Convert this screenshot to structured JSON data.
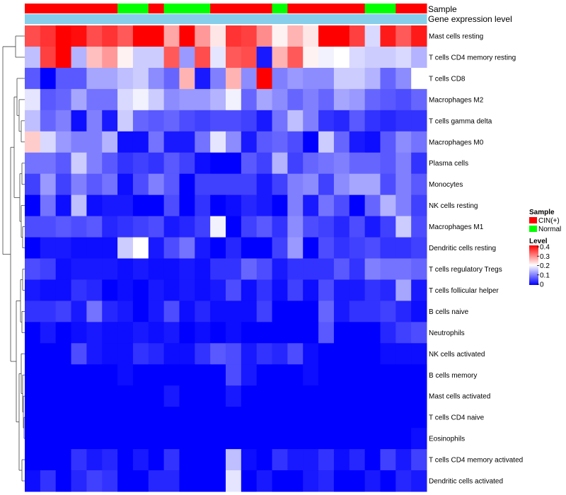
{
  "chart_data": {
    "type": "heatmap",
    "title": "",
    "row_labels": [
      "Mast cells resting",
      "T cells CD4 memory resting",
      "T cells CD8",
      "Macrophages M2",
      "T cells gamma delta",
      "Macrophages M0",
      "Plasma cells",
      "Monocytes",
      "NK cells resting",
      "Macrophages M1",
      "Dendritic cells resting",
      "T cells regulatory  Tregs",
      "T cells follicular helper",
      "B cells naive",
      "Neutrophils",
      "NK cells activated",
      "B cells memory",
      "Mast cells activated",
      "T cells CD4 naive",
      "Eosinophils",
      "T cells CD4 memory activated",
      "Dendritic cells activated"
    ],
    "column_annotation": {
      "Sample": [
        "CIN(+)",
        "CIN(+)",
        "CIN(+)",
        "CIN(+)",
        "CIN(+)",
        "CIN(+)",
        "Normal",
        "Normal",
        "CIN(+)",
        "Normal",
        "Normal",
        "Normal",
        "CIN(+)",
        "CIN(+)",
        "CIN(+)",
        "CIN(+)",
        "Normal",
        "CIN(+)",
        "CIN(+)",
        "CIN(+)",
        "CIN(+)",
        "CIN(+)",
        "Normal",
        "Normal",
        "CIN(+)",
        "CIN(+)"
      ],
      "Gene expression level": [
        "Gene expression level",
        "Gene expression level",
        "Gene expression level",
        "Gene expression level",
        "Gene expression level",
        "Gene expression level",
        "Gene expression level",
        "Gene expression level",
        "Gene expression level",
        "Gene expression level",
        "Gene expression level",
        "Gene expression level",
        "Gene expression level",
        "Gene expression level",
        "Gene expression level",
        "Gene expression level",
        "Gene expression level",
        "Gene expression level",
        "Gene expression level",
        "Gene expression level",
        "Gene expression level",
        "Gene expression level",
        "Gene expression level",
        "Gene expression level",
        "Gene expression level",
        "Gene expression level"
      ]
    },
    "annotation_labels": [
      "Sample",
      "Gene expression level"
    ],
    "values": [
      [
        0.34,
        0.36,
        0.4,
        0.39,
        0.34,
        0.36,
        0.33,
        0.4,
        0.4,
        0.27,
        0.4,
        0.28,
        0.22,
        0.36,
        0.35,
        0.29,
        0.21,
        0.26,
        0.22,
        0.4,
        0.4,
        0.35,
        0.17,
        0.38,
        0.33,
        0.38
      ],
      [
        0.15,
        0.35,
        0.4,
        0.14,
        0.25,
        0.28,
        0.21,
        0.16,
        0.16,
        0.33,
        0.12,
        0.34,
        0.18,
        0.33,
        0.34,
        0.02,
        0.26,
        0.33,
        0.21,
        0.19,
        0.2,
        0.17,
        0.16,
        0.16,
        0.17,
        0.14
      ],
      [
        0.07,
        0.0,
        0.07,
        0.07,
        0.13,
        0.13,
        0.15,
        0.16,
        0.11,
        0.08,
        0.26,
        0.02,
        0.1,
        0.26,
        0.11,
        0.4,
        0.1,
        0.12,
        0.11,
        0.11,
        0.16,
        0.16,
        0.14,
        0.08,
        0.11,
        0.2
      ],
      [
        0.18,
        0.07,
        0.08,
        0.13,
        0.09,
        0.09,
        0.17,
        0.19,
        0.16,
        0.11,
        0.12,
        0.12,
        0.14,
        0.19,
        0.08,
        0.13,
        0.11,
        0.08,
        0.1,
        0.08,
        0.13,
        0.12,
        0.08,
        0.07,
        0.06,
        0.08
      ],
      [
        0.15,
        0.08,
        0.1,
        0.01,
        0.1,
        0.02,
        0.16,
        0.08,
        0.07,
        0.08,
        0.06,
        0.05,
        0.06,
        0.06,
        0.05,
        0.02,
        0.09,
        0.15,
        0.1,
        0.04,
        0.03,
        0.07,
        0.04,
        0.03,
        0.04,
        0.04
      ],
      [
        0.24,
        0.17,
        0.12,
        0.1,
        0.1,
        0.14,
        0.01,
        0.01,
        0.09,
        0.02,
        0.02,
        0.09,
        0.18,
        0.11,
        0.02,
        0.07,
        0.08,
        0.06,
        0.0,
        0.16,
        0.08,
        0.02,
        0.01,
        0.07,
        0.11,
        0.09
      ],
      [
        0.09,
        0.09,
        0.07,
        0.16,
        0.1,
        0.07,
        0.04,
        0.05,
        0.04,
        0.07,
        0.05,
        0.01,
        0.0,
        0.0,
        0.07,
        0.05,
        0.14,
        0.05,
        0.08,
        0.09,
        0.1,
        0.08,
        0.08,
        0.07,
        0.1,
        0.04
      ],
      [
        0.05,
        0.12,
        0.05,
        0.1,
        0.07,
        0.09,
        0.01,
        0.06,
        0.1,
        0.07,
        0.0,
        0.05,
        0.05,
        0.05,
        0.05,
        0.02,
        0.05,
        0.1,
        0.11,
        0.05,
        0.11,
        0.13,
        0.13,
        0.06,
        0.1,
        0.07
      ],
      [
        0.0,
        0.09,
        0.01,
        0.15,
        0.01,
        0.02,
        0.02,
        0.0,
        0.0,
        0.06,
        0.0,
        0.04,
        0.0,
        0.01,
        0.03,
        0.02,
        0.0,
        0.1,
        0.02,
        0.09,
        0.06,
        0.0,
        0.08,
        0.14,
        0.1,
        0.05
      ],
      [
        0.06,
        0.06,
        0.07,
        0.06,
        0.07,
        0.03,
        0.04,
        0.05,
        0.06,
        0.02,
        0.03,
        0.05,
        0.19,
        0.0,
        0.05,
        0.07,
        0.04,
        0.11,
        0.06,
        0.05,
        0.03,
        0.06,
        0.02,
        0.05,
        0.16,
        0.06
      ],
      [
        0.0,
        0.02,
        0.02,
        0.01,
        0.01,
        0.01,
        0.16,
        0.2,
        0.02,
        0.06,
        0.09,
        0.02,
        0.0,
        0.03,
        0.0,
        0.0,
        0.05,
        0.12,
        0.0,
        0.06,
        0.04,
        0.05,
        0.06,
        0.04,
        0.04,
        0.05
      ],
      [
        0.06,
        0.05,
        0.01,
        0.02,
        0.02,
        0.02,
        0.01,
        0.02,
        0.01,
        0.01,
        0.02,
        0.01,
        0.04,
        0.04,
        0.08,
        0.06,
        0.02,
        0.04,
        0.04,
        0.04,
        0.07,
        0.04,
        0.1,
        0.09,
        0.09,
        0.08
      ],
      [
        0.02,
        0.01,
        0.01,
        0.04,
        0.03,
        0.0,
        0.01,
        0.0,
        0.02,
        0.01,
        0.02,
        0.01,
        0.02,
        0.06,
        0.01,
        0.04,
        0.01,
        0.05,
        0.01,
        0.06,
        0.02,
        0.02,
        0.04,
        0.03,
        0.13,
        0.02
      ],
      [
        0.04,
        0.04,
        0.05,
        0.02,
        0.09,
        0.03,
        0.02,
        0.0,
        0.02,
        0.06,
        0.01,
        0.03,
        0.01,
        0.01,
        0.01,
        0.05,
        0.0,
        0.0,
        0.0,
        0.08,
        0.02,
        0.04,
        0.04,
        0.05,
        0.03,
        0.01
      ],
      [
        0.0,
        0.02,
        0.0,
        0.01,
        0.02,
        0.01,
        0.01,
        0.02,
        0.01,
        0.02,
        0.0,
        0.01,
        0.0,
        0.01,
        0.0,
        0.0,
        0.0,
        0.0,
        0.0,
        0.07,
        0.0,
        0.0,
        0.0,
        0.03,
        0.05,
        0.06
      ],
      [
        0.0,
        0.0,
        0.0,
        0.06,
        0.02,
        0.01,
        0.01,
        0.04,
        0.03,
        0.01,
        0.01,
        0.04,
        0.07,
        0.06,
        0.02,
        0.04,
        0.03,
        0.06,
        0.01,
        0.0,
        0.0,
        0.0,
        0.0,
        0.01,
        0.01,
        0.01
      ],
      [
        0.0,
        0.0,
        0.0,
        0.0,
        0.0,
        0.0,
        0.01,
        0.0,
        0.0,
        0.0,
        0.0,
        0.0,
        0.0,
        0.06,
        0.02,
        0.0,
        0.0,
        0.0,
        0.01,
        0.0,
        0.0,
        0.0,
        0.0,
        0.0,
        0.0,
        0.0
      ],
      [
        0.0,
        0.0,
        0.0,
        0.0,
        0.0,
        0.0,
        0.0,
        0.0,
        0.0,
        0.02,
        0.0,
        0.0,
        0.0,
        0.02,
        0.0,
        0.0,
        0.0,
        0.0,
        0.0,
        0.0,
        0.0,
        0.0,
        0.0,
        0.0,
        0.0,
        0.0
      ],
      [
        0.0,
        0.0,
        0.0,
        0.0,
        0.0,
        0.0,
        0.0,
        0.0,
        0.0,
        0.0,
        0.0,
        0.0,
        0.0,
        0.0,
        0.0,
        0.0,
        0.0,
        0.0,
        0.0,
        0.0,
        0.0,
        0.0,
        0.0,
        0.0,
        0.0,
        0.0
      ],
      [
        0.0,
        0.0,
        0.0,
        0.0,
        0.0,
        0.0,
        0.0,
        0.0,
        0.0,
        0.0,
        0.0,
        0.0,
        0.0,
        0.0,
        0.0,
        0.0,
        0.0,
        0.0,
        0.0,
        0.0,
        0.0,
        0.0,
        0.0,
        0.0,
        0.0,
        0.01
      ],
      [
        0.0,
        0.0,
        0.0,
        0.04,
        0.02,
        0.03,
        0.0,
        0.02,
        0.0,
        0.04,
        0.0,
        0.0,
        0.0,
        0.15,
        0.01,
        0.0,
        0.04,
        0.02,
        0.02,
        0.04,
        0.01,
        0.03,
        0.0,
        0.05,
        0.02,
        0.05
      ],
      [
        0.01,
        0.04,
        0.0,
        0.03,
        0.05,
        0.04,
        0.0,
        0.0,
        0.03,
        0.03,
        0.0,
        0.0,
        0.0,
        0.18,
        0.0,
        0.02,
        0.0,
        0.0,
        0.02,
        0.03,
        0.0,
        0.0,
        0.02,
        0.0,
        0.03,
        0.02
      ]
    ],
    "color_scale": {
      "name": "Level",
      "min": 0,
      "max": 0.4,
      "low": "#0000ff",
      "mid": "#ffffff",
      "high": "#ff0000",
      "ticks": [
        0.4,
        0.3,
        0.2,
        0.1,
        0
      ],
      "tick_labels": [
        "0.4",
        "0.3",
        "0.2",
        "0.1",
        "0"
      ]
    },
    "sample_legend": {
      "title": "Sample",
      "entries": [
        {
          "label": "CIN(+)",
          "color": "#ff0000"
        },
        {
          "label": "Normal",
          "color": "#00ff00"
        }
      ]
    },
    "expression_level_color": "#87ceeb",
    "row_dendrogram": true,
    "legend_position": "right"
  }
}
